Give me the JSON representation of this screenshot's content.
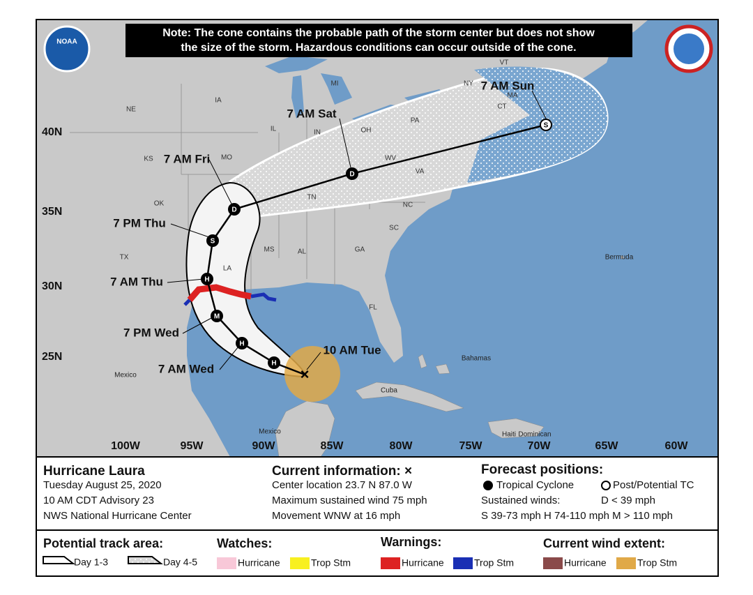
{
  "header": {
    "logo": "NOAA",
    "note": [
      "Note: The cone contains the probable path of the storm center but does not show",
      "the size of the storm. Hazardous conditions can occur outside of the cone."
    ]
  },
  "map": {
    "states": [
      "NE",
      "IA",
      "MI",
      "IL",
      "IN",
      "OH",
      "PA",
      "NY",
      "MA",
      "CT",
      "KS",
      "MO",
      "WV",
      "VA",
      "TN",
      "NC",
      "OK",
      "SC",
      "MS",
      "AL",
      "GA",
      "TX",
      "LA",
      "FL",
      "VT"
    ],
    "latitudes": [
      "40N",
      "35N",
      "30N",
      "25N"
    ],
    "longitudes": [
      "100W",
      "95W",
      "90W",
      "85W",
      "80W",
      "75W",
      "70W",
      "65W",
      "60W"
    ],
    "places": [
      "Bermuda",
      "Bahamas",
      "Cuba",
      "Mexico",
      "Mexico",
      "Haiti",
      "Dominican"
    ],
    "forecast_times": [
      "7 AM Sun",
      "7 AM Sat",
      "7 AM Fri",
      "7 PM Thu",
      "7 AM Thu",
      "7 PM Wed",
      "7 AM Wed",
      "10 AM Tue"
    ],
    "markers": [
      "S",
      "D",
      "D",
      "S",
      "H",
      "M",
      "H",
      "H"
    ]
  },
  "info": {
    "storm": "Hurricane Laura",
    "date": "Tuesday August 25, 2020",
    "advisory": "10 AM CDT Advisory 23",
    "center": "NWS National Hurricane Center",
    "current_title": "Current information: ×",
    "current": [
      "Center location 23.7 N 87.0 W",
      "Maximum sustained wind 75 mph",
      "Movement WNW at 16 mph"
    ],
    "forecast_title": "Forecast positions:",
    "tropical": "Tropical Cyclone",
    "post": "Post/Potential TC",
    "sustained": "Sustained winds:",
    "d": "D < 39 mph",
    "scale": "S 39-73 mph  H 74-110 mph  M > 110 mph"
  },
  "legend": {
    "track_title": "Potential track area:",
    "day13": "Day 1-3",
    "day45": "Day 4-5",
    "watches": "Watches:",
    "watch_hurricane": "Hurricane",
    "watch_ts": "Trop Stm",
    "warnings": "Warnings:",
    "warn_hurricane": "Hurricane",
    "warn_ts": "Trop Stm",
    "wind": "Current wind extent:",
    "wind_hurricane": "Hurricane",
    "wind_ts": "Trop Stm"
  }
}
